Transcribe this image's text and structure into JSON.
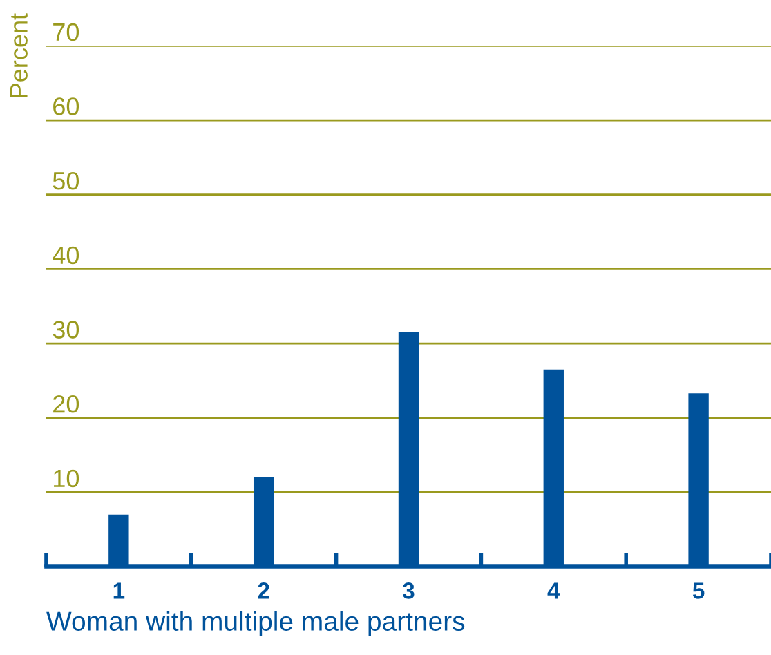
{
  "chart_data": {
    "type": "bar",
    "xlabel": "Woman with multiple male partners",
    "ylabel": "Percent",
    "categories": [
      "1",
      "2",
      "3",
      "4",
      "5"
    ],
    "values": [
      7,
      12,
      31.5,
      26.5,
      23.3
    ],
    "color": "#00529b",
    "ylim": [
      0,
      70
    ],
    "yticks": [
      10,
      20,
      30,
      40,
      50,
      60,
      70
    ],
    "grid": "y"
  }
}
